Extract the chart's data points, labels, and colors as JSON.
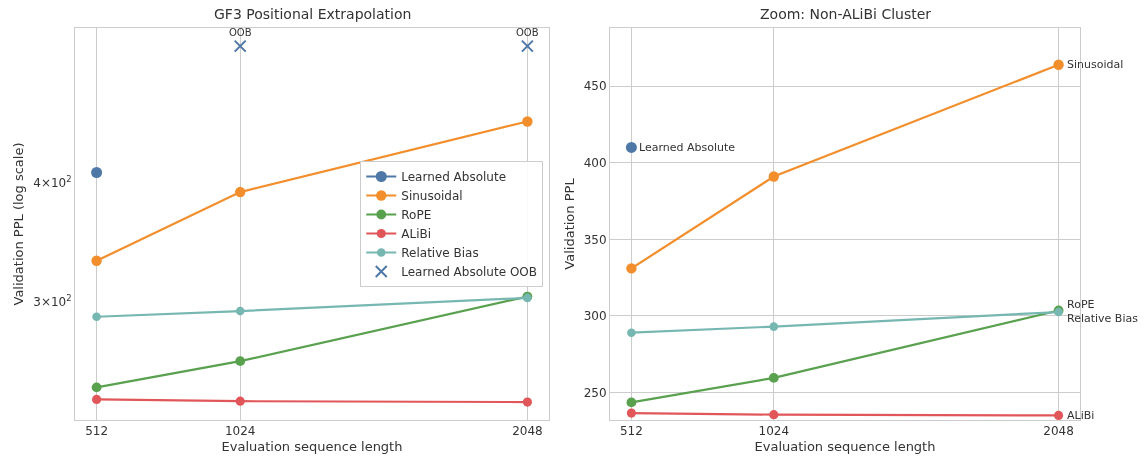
{
  "chart_data": [
    {
      "type": "line",
      "title": "GF3 Positional Extrapolation",
      "xlabel": "Evaluation sequence length",
      "ylabel": "Validation PPL (log scale)",
      "x": [
        512,
        1024,
        2048
      ],
      "xlim": [
        435,
        2125
      ],
      "xticks": [
        512,
        1024,
        2048
      ],
      "ylim": [
        225,
        582
      ],
      "yticks": [
        {
          "value": 300,
          "label": "3×10$^{2}$"
        },
        {
          "value": 400,
          "label": "4×10$^{2}$"
        }
      ],
      "log": "y",
      "grid": "x",
      "legend": "right",
      "marker": "circle",
      "series": [
        {
          "name": "Learned Absolute",
          "color": "#4e79a7",
          "values": [
            410,
            null,
            null
          ]
        },
        {
          "name": "Sinusoidal",
          "color": "#f28e2b",
          "values": [
            331,
            391,
            464
          ]
        },
        {
          "name": "RoPE",
          "color": "#59a14f",
          "values": [
            243.5,
            259.5,
            303.5
          ]
        },
        {
          "name": "ALiBi",
          "color": "#e15759",
          "values": [
            236.5,
            235.5,
            235
          ]
        },
        {
          "name": "Relative Bias",
          "color": "#76b7b2",
          "values": [
            289,
            293,
            302.5
          ]
        },
        {
          "name": "Learned Absolute OOB",
          "type": "scatter",
          "marker": "cross",
          "color": "#4e79a7",
          "values": [
            null,
            557,
            557
          ]
        }
      ],
      "annotations": [
        {
          "text": "OOB",
          "x": 1024,
          "y": 557
        },
        {
          "text": "OOB",
          "x": 2048,
          "y": 557
        }
      ]
    },
    {
      "type": "line",
      "title": "Zoom: Non-ALiBi Cluster",
      "xlabel": "Evaluation sequence length",
      "ylabel": "Validation PPL",
      "x": [
        512,
        1024,
        2048
      ],
      "xlim": [
        435,
        2125
      ],
      "xticks": [
        512,
        1024,
        2048
      ],
      "ylim": [
        232,
        488
      ],
      "yticks": [
        250,
        300,
        350,
        400,
        450
      ],
      "grid": true,
      "legend": false,
      "marker": "circle",
      "series": [
        {
          "name": "Learned Absolute",
          "color": "#4e79a7",
          "values": [
            410,
            null,
            null
          ]
        },
        {
          "name": "Sinusoidal",
          "color": "#f28e2b",
          "values": [
            331,
            391,
            464
          ]
        },
        {
          "name": "RoPE",
          "color": "#59a14f",
          "values": [
            243.5,
            259.5,
            303.5
          ]
        },
        {
          "name": "ALiBi",
          "color": "#e15759",
          "values": [
            236.5,
            235.5,
            235
          ]
        },
        {
          "name": "Relative Bias",
          "color": "#76b7b2",
          "values": [
            289,
            293,
            302.5
          ]
        }
      ]
    }
  ]
}
